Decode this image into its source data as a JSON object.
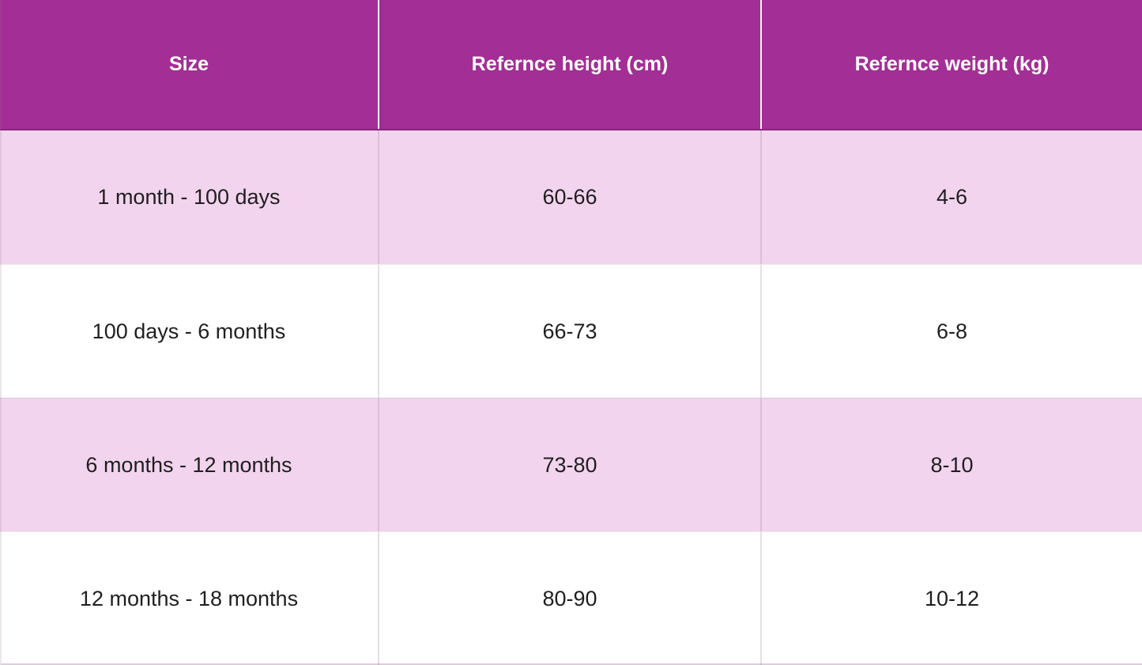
{
  "chart_data": {
    "type": "table",
    "title": "",
    "columns": [
      "Size",
      "Refernce height (cm)",
      "Refernce weight (kg)"
    ],
    "rows": [
      [
        "1 month - 100 days",
        "60-66",
        "4-6"
      ],
      [
        "100 days - 6 months",
        "66-73",
        "6-8"
      ],
      [
        "6 months - 12 months",
        "73-80",
        "8-10"
      ],
      [
        "12 months - 18 months",
        "80-90",
        "10-12"
      ]
    ]
  },
  "colors": {
    "header_bg": "#a32e95",
    "header_text": "#ffffff",
    "row_alt_bg": "#f2d4ee",
    "row_bg": "#ffffff",
    "body_text": "#1f1f1f",
    "divider": "#cfc6cf"
  }
}
